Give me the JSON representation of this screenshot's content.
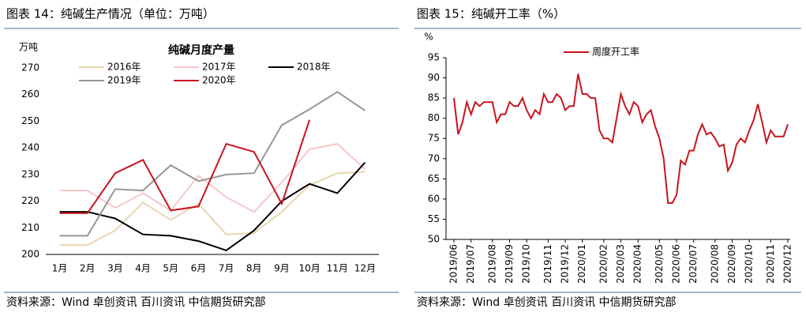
{
  "chart_data": [
    {
      "type": "line",
      "title": "图表 14：纯碱生产情况（单位：万吨）",
      "subtitle": "纯碱月度产量",
      "y_label": "万吨",
      "source": "资料来源：Wind 卓创资讯 百川资讯 中信期货研究部",
      "categories": [
        "1月",
        "2月",
        "3月",
        "4月",
        "5月",
        "6月",
        "7月",
        "8月",
        "9月",
        "10月",
        "11月",
        "12月"
      ],
      "ylim": [
        200,
        270
      ],
      "yticks": [
        200,
        210,
        220,
        230,
        240,
        250,
        260,
        270
      ],
      "grid": false,
      "series": [
        {
          "name": "2016年",
          "color": "#e8d5b0",
          "values": [
            203.5,
            203.5,
            209,
            219.5,
            213,
            219,
            207.5,
            208,
            216,
            226,
            230.5,
            231
          ]
        },
        {
          "name": "2017年",
          "color": "#f5c8c8",
          "values": [
            224,
            224,
            217.5,
            223,
            216.5,
            229.5,
            221.5,
            216,
            227,
            239.5,
            241.5,
            232
          ]
        },
        {
          "name": "2018年",
          "color": "#000000",
          "values": [
            216,
            216,
            213.5,
            207.5,
            207,
            205,
            201.5,
            209,
            220,
            226.5,
            223,
            234.5
          ]
        },
        {
          "name": "2019年",
          "color": "#969696",
          "values": [
            207,
            207,
            224.5,
            224,
            233.5,
            227.5,
            230,
            230.5,
            248.5,
            254.5,
            261,
            254
          ]
        },
        {
          "name": "2020年",
          "color": "#c8141e",
          "values": [
            215.5,
            215.5,
            230.5,
            235.5,
            216.5,
            218,
            241.5,
            238.5,
            219,
            250.5,
            null,
            null
          ]
        }
      ]
    },
    {
      "type": "line",
      "title": "图表 15：纯碱开工率（%）",
      "y_label": "%",
      "source": "资料来源：Wind 卓创资讯 百川资讯 中信期货研究部",
      "categories": [
        "2019/06",
        null,
        null,
        null,
        "2019/07",
        null,
        null,
        null,
        null,
        "2019/08",
        null,
        null,
        null,
        "2019/09",
        null,
        null,
        null,
        "2019/10",
        null,
        null,
        null,
        null,
        "2019/11",
        null,
        null,
        null,
        "2019/12",
        null,
        null,
        null,
        "2020/01",
        null,
        null,
        null,
        null,
        "2020/02",
        null,
        null,
        null,
        "2020/03",
        null,
        null,
        null,
        "2020/04",
        null,
        null,
        null,
        null,
        "2020/05",
        null,
        null,
        null,
        "2020/06",
        null,
        null,
        null,
        "2020/07",
        null,
        null,
        null,
        null,
        "2020/08",
        null,
        null,
        null,
        "2020/09",
        null,
        null,
        null,
        "2020/10",
        null,
        null,
        null,
        null,
        "2020/11",
        null,
        null,
        null,
        "2020/12"
      ],
      "ylim": [
        50,
        95
      ],
      "yticks": [
        50,
        55,
        60,
        65,
        70,
        75,
        80,
        85,
        90,
        95
      ],
      "grid": false,
      "series": [
        {
          "name": "周度开工率",
          "color": "#c8141e",
          "values": [
            85,
            76,
            79,
            84,
            81,
            84,
            83,
            84,
            84,
            84,
            79,
            81,
            81,
            84,
            83,
            83,
            85,
            82,
            80,
            82,
            81,
            86,
            84,
            84,
            86,
            85,
            82,
            83,
            83,
            91,
            86,
            86,
            85,
            85,
            77,
            75,
            75,
            74,
            80,
            86,
            83,
            81,
            84,
            83,
            79,
            81,
            82,
            78,
            75,
            70,
            59,
            59,
            61,
            69.5,
            68.5,
            72,
            72,
            76,
            78.5,
            76,
            76.5,
            75,
            73,
            73.5,
            67,
            69,
            73.5,
            75,
            74,
            77,
            79.5,
            83.5,
            79,
            74,
            77,
            75.5,
            75.5,
            75.5,
            78.5
          ]
        }
      ]
    }
  ]
}
